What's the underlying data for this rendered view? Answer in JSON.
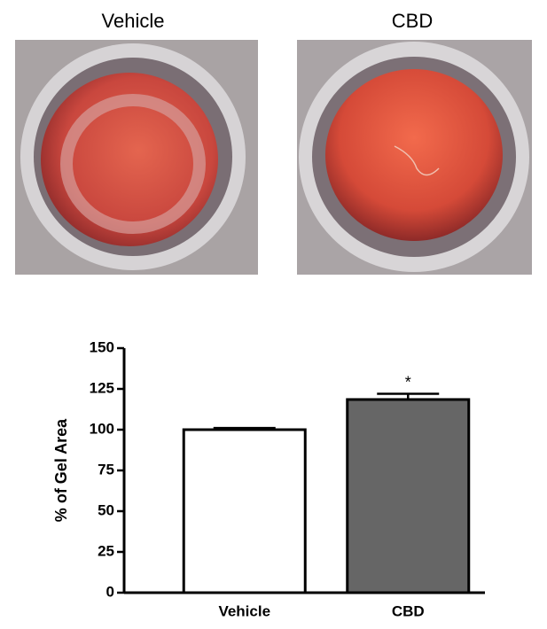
{
  "photos": [
    "Vehicle",
    "CBD"
  ],
  "chart_data": {
    "type": "bar",
    "ylabel": "% of Gel Area",
    "categories": [
      "Vehicle",
      "CBD"
    ],
    "values": [
      100,
      118.5
    ],
    "errors": [
      1,
      3.5
    ],
    "colors": [
      "#ffffff",
      "#666666"
    ],
    "ylim": [
      0,
      150
    ],
    "yticks": [
      0,
      25,
      50,
      75,
      100,
      125,
      150
    ],
    "annotations": [
      {
        "text": "*",
        "x": "CBD"
      }
    ]
  }
}
